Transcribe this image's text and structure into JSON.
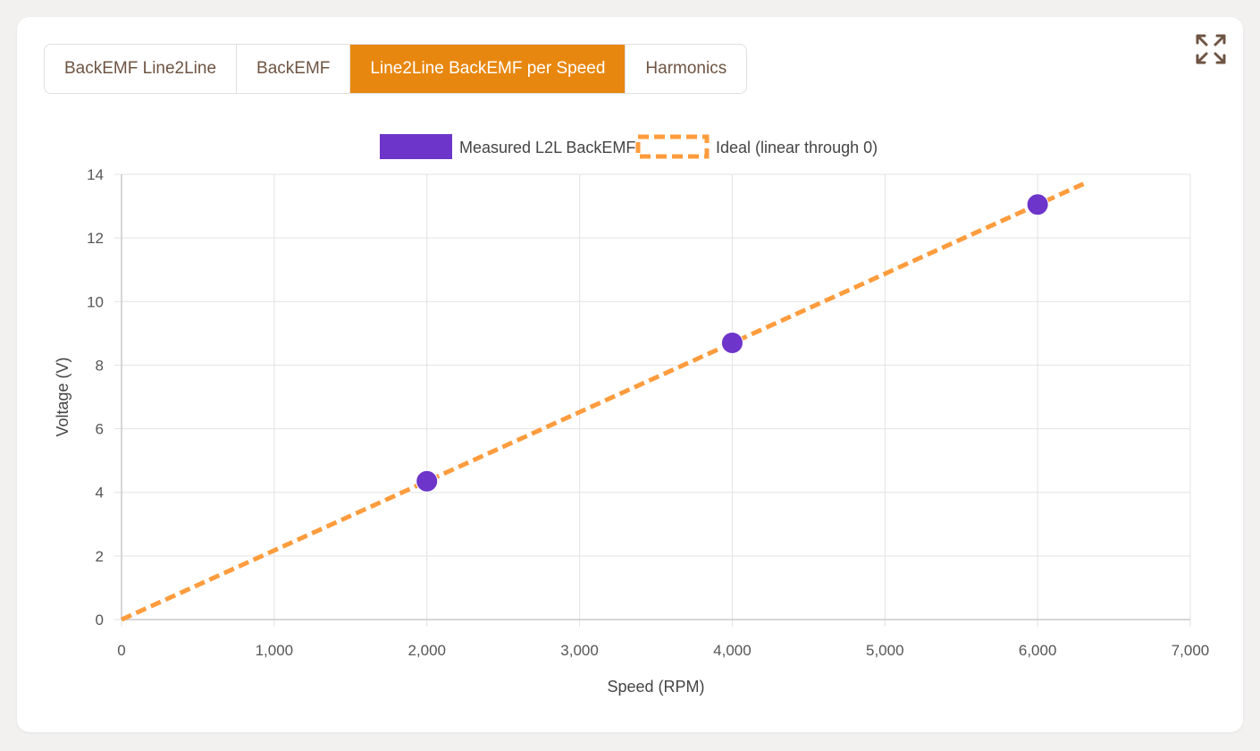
{
  "tabs": [
    {
      "label": "BackEMF Line2Line",
      "active": false
    },
    {
      "label": "BackEMF",
      "active": false
    },
    {
      "label": "Line2Line BackEMF per Speed",
      "active": true
    },
    {
      "label": "Harmonics",
      "active": false
    }
  ],
  "icons": {
    "expand": "expand-icon"
  },
  "colors": {
    "accent": "#e8870f",
    "measured": "#6d35c9",
    "ideal": "#ff9c3d",
    "tab_text": "#6e5443"
  },
  "chart_data": {
    "type": "scatter",
    "xlabel": "Speed (RPM)",
    "ylabel": "Voltage (V)",
    "xlim": [
      0,
      7000
    ],
    "ylim": [
      0,
      14
    ],
    "xticks": [
      0,
      1000,
      2000,
      3000,
      4000,
      5000,
      6000,
      7000
    ],
    "xtick_labels": [
      "0",
      "1,000",
      "2,000",
      "3,000",
      "4,000",
      "5,000",
      "6,000",
      "7,000"
    ],
    "yticks": [
      0,
      2,
      4,
      6,
      8,
      10,
      12,
      14
    ],
    "ytick_labels": [
      "0",
      "2",
      "4",
      "6",
      "8",
      "10",
      "12",
      "14"
    ],
    "grid": true,
    "legend_position": "top-center",
    "series": [
      {
        "name": "Measured L2L BackEMF",
        "kind": "scatter",
        "x": [
          2000,
          4000,
          6000
        ],
        "y": [
          4.35,
          8.7,
          13.05
        ]
      },
      {
        "name": "Ideal (linear through 0)",
        "kind": "line",
        "style": "dashed",
        "x": [
          0,
          6300
        ],
        "y": [
          0,
          13.7
        ]
      }
    ]
  }
}
